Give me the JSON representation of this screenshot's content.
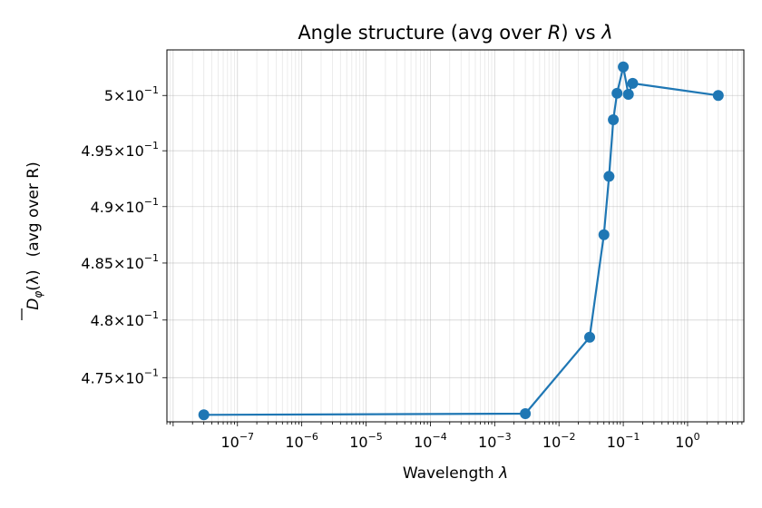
{
  "chart_data": {
    "type": "line",
    "title_main": "Angle structure (avg over ",
    "title_r": "R",
    "title_mid": ") vs ",
    "title_lambda": "λ",
    "xlabel_main": "Wavelength ",
    "xlabel_sym": "λ",
    "ylabel_sym": "D",
    "ylabel_sub": "φ",
    "ylabel_arg": "(λ)",
    "ylabel_rest": "(avg over R)",
    "x_scale": "log",
    "y_scale": "log",
    "xlim": [
      8e-09,
      7.5
    ],
    "ylim": [
      0.4712,
      0.50416
    ],
    "grid": true,
    "series_color": "#1f77b4",
    "x_ticks": [
      {
        "value": 1e-07,
        "base": "10",
        "exp": "−7"
      },
      {
        "value": 1e-06,
        "base": "10",
        "exp": "−6"
      },
      {
        "value": 1e-05,
        "base": "10",
        "exp": "−5"
      },
      {
        "value": 0.0001,
        "base": "10",
        "exp": "−4"
      },
      {
        "value": 0.001,
        "base": "10",
        "exp": "−3"
      },
      {
        "value": 0.01,
        "base": "10",
        "exp": "−2"
      },
      {
        "value": 0.1,
        "base": "10",
        "exp": "−1"
      },
      {
        "value": 1,
        "base": "10",
        "exp": "0"
      }
    ],
    "y_ticks": [
      {
        "value": 0.475,
        "mant": "4.75",
        "base": "10",
        "exp": "−1"
      },
      {
        "value": 0.48,
        "mant": "4.8",
        "base": "10",
        "exp": "−1"
      },
      {
        "value": 0.485,
        "mant": "4.85",
        "base": "10",
        "exp": "−1"
      },
      {
        "value": 0.49,
        "mant": "4.9",
        "base": "10",
        "exp": "−1"
      },
      {
        "value": 0.495,
        "mant": "4.95",
        "base": "10",
        "exp": "−1"
      },
      {
        "value": 0.5,
        "mant": "5",
        "base": "10",
        "exp": "−1"
      }
    ],
    "x": [
      3e-08,
      0.003,
      0.03,
      0.05,
      0.06,
      0.07,
      0.08,
      0.1,
      0.12,
      0.14,
      3.0
    ],
    "y": [
      0.4718,
      0.4719,
      0.4785,
      0.4875,
      0.4927,
      0.4978,
      0.5002,
      0.5026,
      0.5001,
      0.5011,
      0.5
    ]
  }
}
